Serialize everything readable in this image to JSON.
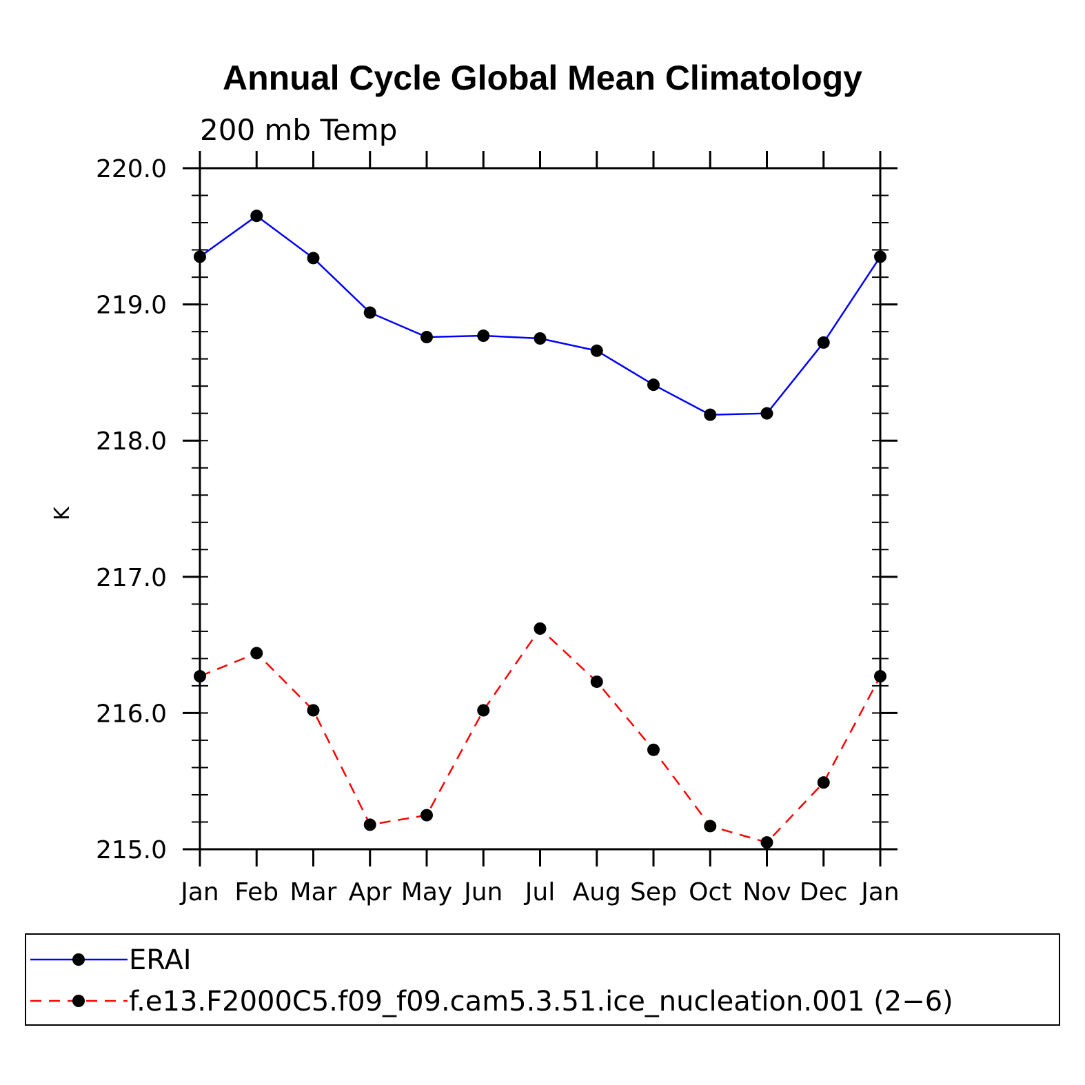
{
  "chart_data": {
    "type": "line",
    "title": "Annual Cycle Global Mean Climatology",
    "subtitle": "200 mb Temp",
    "xlabel": "",
    "ylabel": "K",
    "categories": [
      "Jan",
      "Feb",
      "Mar",
      "Apr",
      "May",
      "Jun",
      "Jul",
      "Aug",
      "Sep",
      "Oct",
      "Nov",
      "Dec",
      "Jan"
    ],
    "ylim": [
      215.0,
      220.0
    ],
    "yticks": [
      "215.0",
      "216.0",
      "217.0",
      "218.0",
      "219.0",
      "220.0"
    ],
    "series": [
      {
        "name": "ERAI",
        "color": "#0000ff",
        "dash": "solid",
        "values": [
          219.35,
          219.65,
          219.34,
          218.94,
          218.76,
          218.77,
          218.75,
          218.66,
          218.41,
          218.19,
          218.2,
          218.72,
          219.35
        ]
      },
      {
        "name": "f.e13.F2000C5.f09_f09.cam5.3.51.ice_nucleation.001 (2−6)",
        "color": "#ff0000",
        "dash": "dashed",
        "values": [
          216.27,
          216.44,
          216.02,
          215.18,
          215.25,
          216.02,
          216.62,
          216.23,
          215.73,
          215.17,
          215.05,
          215.49,
          216.27
        ]
      }
    ],
    "legend_position": "bottom"
  }
}
